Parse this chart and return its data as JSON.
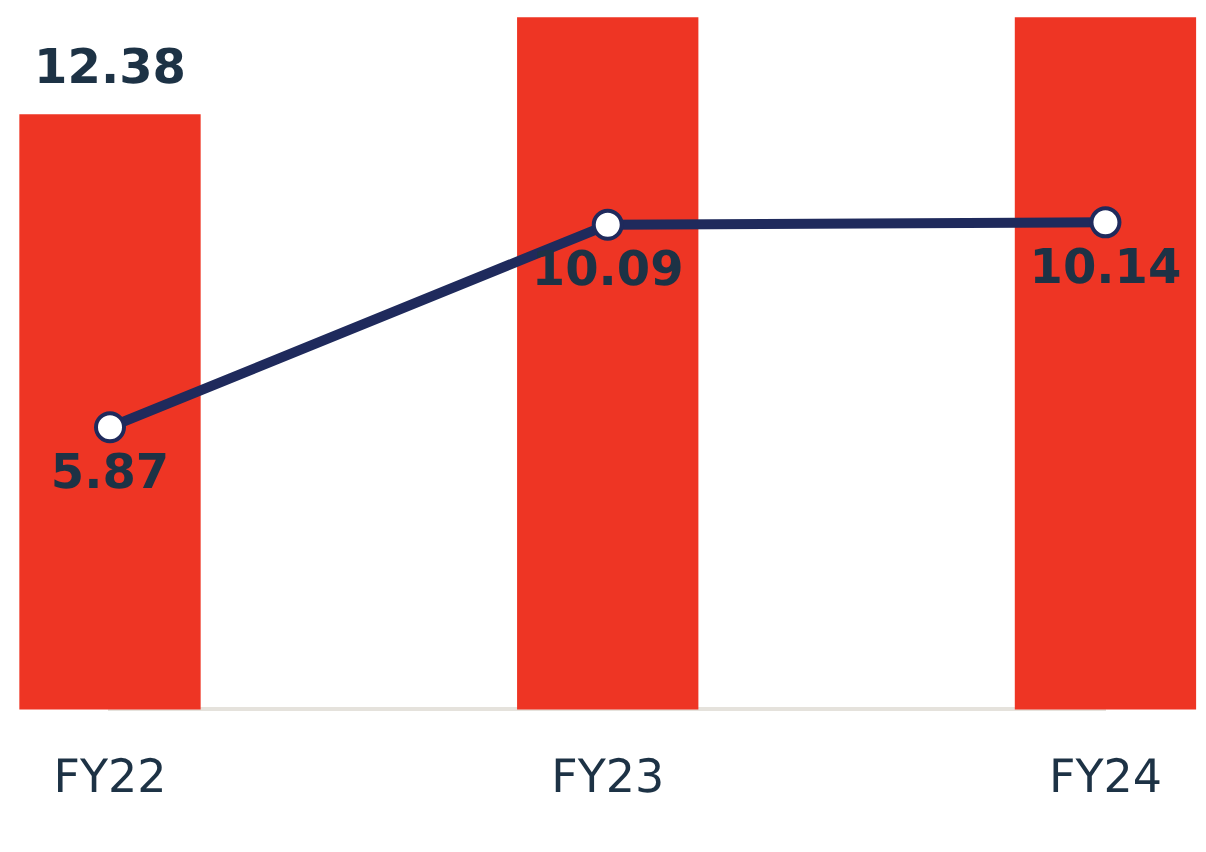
{
  "chart_data": {
    "type": "bar",
    "categories": [
      "FY22",
      "FY23",
      "FY24"
    ],
    "series": [
      {
        "color": "#ee3524",
        "values": [
          12.38,
          14.4,
          14.4
        ],
        "value_labels": [
          "12.38",
          null,
          null
        ]
      },
      {
        "type": "line",
        "color": "#1f2a5c",
        "values": [
          5.87,
          10.09,
          10.14
        ],
        "value_labels": [
          "5.87",
          "10.09",
          "10.14"
        ]
      }
    ],
    "ylim": [
      0,
      14.4
    ],
    "tick_labels": "x",
    "grid": false,
    "legend": false,
    "marker": "circle",
    "line_style": "solid"
  }
}
